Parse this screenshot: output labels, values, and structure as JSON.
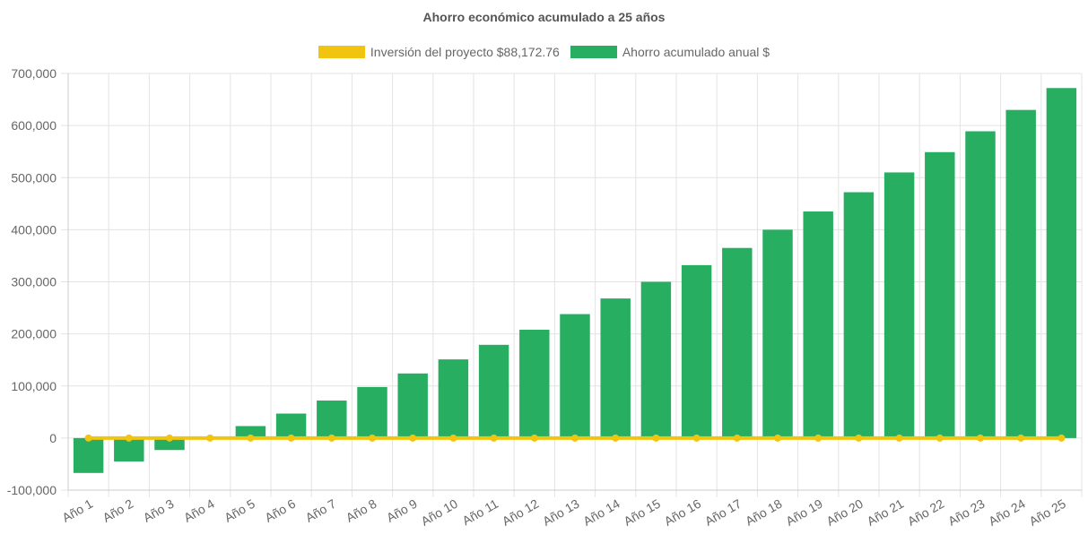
{
  "chart_data": {
    "type": "bar",
    "title": "Ahorro económico acumulado a 25 años",
    "categories": [
      "Año 1",
      "Año 2",
      "Año 3",
      "Año 4",
      "Año 5",
      "Año 6",
      "Año 7",
      "Año 8",
      "Año 9",
      "Año 10",
      "Año 11",
      "Año 12",
      "Año 13",
      "Año 14",
      "Año 15",
      "Año 16",
      "Año 17",
      "Año 18",
      "Año 19",
      "Año 20",
      "Año 21",
      "Año 22",
      "Año 23",
      "Año 24",
      "Año 25"
    ],
    "series": [
      {
        "name": "Inversión del proyecto $88,172.76",
        "type": "line",
        "color": "#f1c40f",
        "values": [
          0,
          0,
          0,
          0,
          0,
          0,
          0,
          0,
          0,
          0,
          0,
          0,
          0,
          0,
          0,
          0,
          0,
          0,
          0,
          0,
          0,
          0,
          0,
          0,
          0
        ]
      },
      {
        "name": "Ahorro acumulado anual $",
        "type": "bar",
        "color": "#27ae60",
        "values": [
          -67000,
          -45000,
          -23000,
          0,
          23000,
          47000,
          72000,
          98000,
          124000,
          151000,
          179000,
          208000,
          238000,
          268000,
          300000,
          332000,
          365000,
          400000,
          435000,
          472000,
          510000,
          549000,
          589000,
          630000,
          672000
        ]
      }
    ],
    "y_ticks": [
      "700,000",
      "600,000",
      "500,000",
      "400,000",
      "300,000",
      "200,000",
      "100,000",
      "0",
      "-100,000"
    ],
    "ylim": [
      -100000,
      700000
    ],
    "grid": true,
    "legend_position": "top"
  }
}
